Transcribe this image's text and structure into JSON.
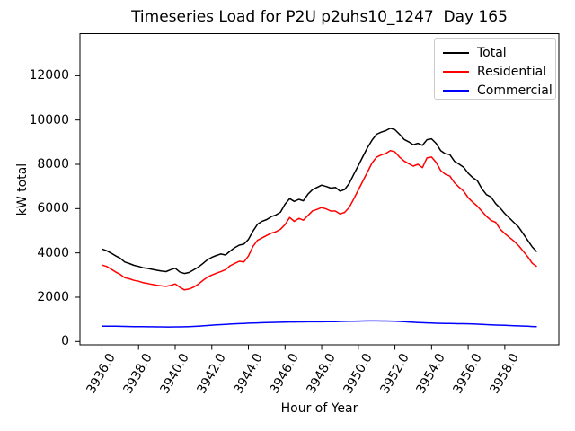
{
  "figure": {
    "title": "Timeseries Load for P2U p2uhs10_1247  Day 165",
    "xlabel": "Hour of Year",
    "ylabel": "kW total"
  },
  "chart_data": {
    "type": "line",
    "title": "Timeseries Load for P2U p2uhs10_1247  Day 165",
    "xlabel": "Hour of Year",
    "ylabel": "kW total",
    "grid": false,
    "legend_position": "upper right",
    "x_start": 3936.0,
    "x_step": 0.25,
    "xlim": [
      3934.8,
      3960.95
    ],
    "ylim": [
      -150,
      13900
    ],
    "x_ticks": [
      "3936.0",
      "3938.0",
      "3940.0",
      "3942.0",
      "3944.0",
      "3946.0",
      "3948.0",
      "3950.0",
      "3952.0",
      "3954.0",
      "3956.0",
      "3958.0"
    ],
    "y_ticks": [
      "0",
      "2000",
      "4000",
      "6000",
      "8000",
      "10000",
      "12000"
    ],
    "series": [
      {
        "name": "Total",
        "color": "#000000",
        "values": [
          4175,
          4100,
          3990,
          3870,
          3760,
          3590,
          3520,
          3440,
          3390,
          3330,
          3300,
          3255,
          3215,
          3180,
          3155,
          3240,
          3310,
          3140,
          3070,
          3115,
          3230,
          3355,
          3510,
          3685,
          3800,
          3885,
          3950,
          3905,
          4080,
          4235,
          4350,
          4395,
          4605,
          4985,
          5300,
          5430,
          5505,
          5640,
          5715,
          5845,
          6200,
          6450,
          6325,
          6420,
          6355,
          6655,
          6855,
          6960,
          7060,
          7000,
          6925,
          6960,
          6790,
          6855,
          7130,
          7540,
          7940,
          8350,
          8750,
          9090,
          9360,
          9450,
          9520,
          9630,
          9560,
          9360,
          9125,
          9020,
          8885,
          8950,
          8860,
          9110,
          9150,
          8950,
          8620,
          8480,
          8440,
          8140,
          8010,
          7870,
          7600,
          7400,
          7260,
          6895,
          6630,
          6520,
          6225,
          6020,
          5775,
          5570,
          5370,
          5170,
          4870,
          4570,
          4270,
          4050
        ]
      },
      {
        "name": "Residential",
        "color": "#ff0000",
        "values": [
          3450,
          3390,
          3270,
          3140,
          3030,
          2880,
          2830,
          2760,
          2720,
          2655,
          2620,
          2575,
          2540,
          2510,
          2490,
          2530,
          2600,
          2450,
          2330,
          2370,
          2455,
          2580,
          2750,
          2900,
          3000,
          3080,
          3160,
          3245,
          3420,
          3525,
          3620,
          3590,
          3855,
          4300,
          4570,
          4680,
          4790,
          4890,
          4955,
          5070,
          5280,
          5600,
          5425,
          5560,
          5480,
          5690,
          5900,
          5965,
          6050,
          5985,
          5890,
          5890,
          5760,
          5825,
          6050,
          6430,
          6840,
          7245,
          7650,
          8060,
          8330,
          8420,
          8490,
          8620,
          8560,
          8330,
          8150,
          8030,
          7920,
          8000,
          7850,
          8290,
          8330,
          8090,
          7720,
          7550,
          7470,
          7170,
          6970,
          6790,
          6490,
          6290,
          6110,
          5880,
          5650,
          5470,
          5380,
          5070,
          4870,
          4700,
          4530,
          4330,
          4080,
          3830,
          3530,
          3380
        ]
      },
      {
        "name": "Commercial",
        "color": "#0000ff",
        "values": [
          695,
          692,
          690,
          688,
          685,
          680,
          678,
          675,
          672,
          668,
          666,
          664,
          662,
          660,
          658,
          658,
          660,
          662,
          666,
          672,
          680,
          692,
          706,
          722,
          740,
          752,
          764,
          776,
          788,
          798,
          806,
          816,
          826,
          834,
          840,
          846,
          852,
          858,
          862,
          868,
          874,
          878,
          880,
          884,
          886,
          888,
          888,
          890,
          890,
          892,
          894,
          898,
          904,
          908,
          912,
          918,
          922,
          925,
          927,
          928,
          928,
          926,
          924,
          922,
          918,
          905,
          892,
          880,
          868,
          856,
          846,
          838,
          830,
          824,
          818,
          814,
          810,
          806,
          803,
          801,
          798,
          790,
          782,
          772,
          762,
          752,
          744,
          736,
          728,
          720,
          712,
          704,
          696,
          688,
          678,
          668
        ]
      }
    ]
  }
}
